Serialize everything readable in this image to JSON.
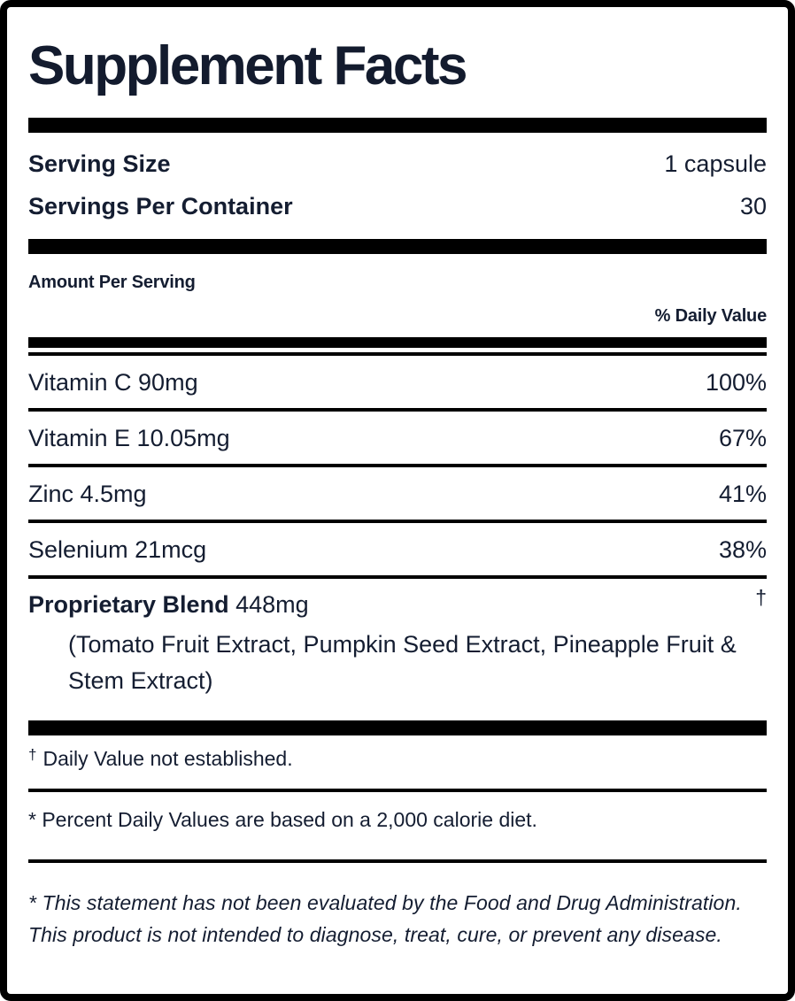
{
  "label": {
    "title": "Supplement Facts",
    "serving": {
      "size_label": "Serving Size",
      "size_value": "1 capsule",
      "count_label": "Servings Per Container",
      "count_value": "30"
    },
    "amount_per_serving_label": "Amount Per Serving",
    "daily_value_header": "% Daily Value",
    "nutrients": [
      {
        "name": "Vitamin C 90mg",
        "daily_value": "100%"
      },
      {
        "name": "Vitamin E 10.05mg",
        "daily_value": "67%"
      },
      {
        "name": "Zinc 4.5mg",
        "daily_value": "41%"
      },
      {
        "name": "Selenium 21mcg",
        "daily_value": "38%"
      }
    ],
    "blend": {
      "name": "Proprietary Blend",
      "amount": "448mg",
      "daily_value_marker": "†",
      "ingredients": "(Tomato Fruit Extract, Pumpkin Seed Extract, Pineapple Fruit & Stem Extract)"
    },
    "footnotes": {
      "dagger_marker": "†",
      "dagger_text": "Daily Value not established.",
      "asterisk_text": "* Percent Daily Values are based on a 2,000 calorie diet."
    },
    "disclaimer": "* This statement has not been evaluated by the Food and Drug Administration. This product is not intended to diagnose, treat, cure, or prevent any disease.",
    "colors": {
      "text": "#141d31",
      "rule": "#000000",
      "background": "#ffffff"
    }
  }
}
